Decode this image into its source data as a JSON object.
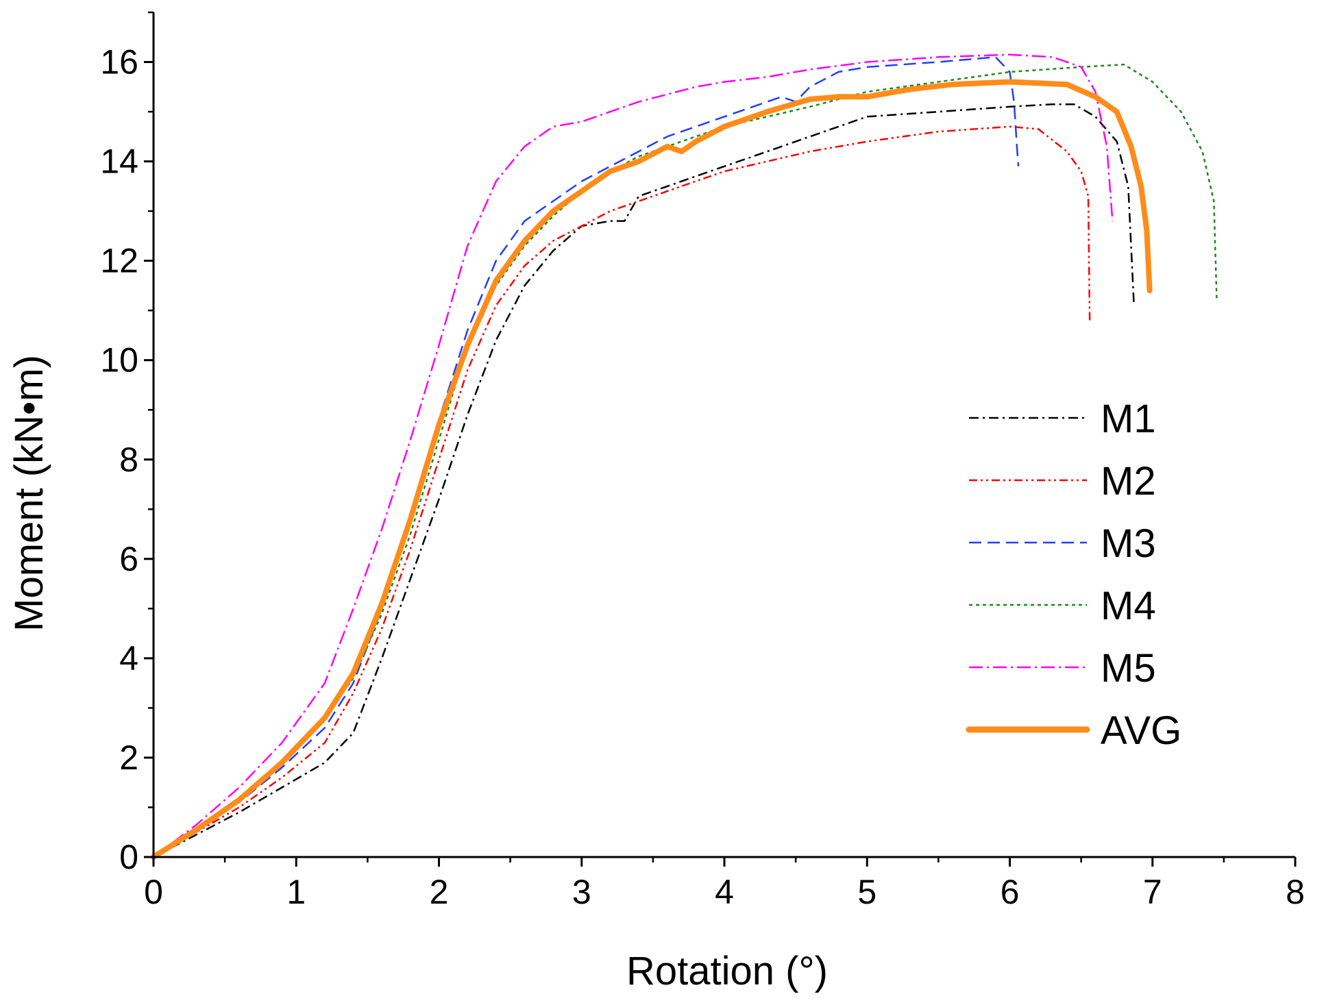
{
  "chart_data": {
    "type": "line",
    "title": "",
    "xlabel": "Rotation (°)",
    "ylabel": "Moment (kN•m)",
    "xlim": [
      0,
      8
    ],
    "ylim": [
      0,
      17
    ],
    "xticks": [
      0,
      1,
      2,
      3,
      4,
      5,
      6,
      7,
      8
    ],
    "yticks": [
      0,
      2,
      4,
      6,
      8,
      10,
      12,
      14,
      16
    ],
    "xtick_labels": [
      "0",
      "1",
      "2",
      "3",
      "4",
      "5",
      "6",
      "7",
      "8"
    ],
    "ytick_labels": [
      "0",
      "2",
      "4",
      "6",
      "8",
      "10",
      "12",
      "14",
      "16"
    ],
    "grid": false,
    "legend_position": "right",
    "series": [
      {
        "name": "M1",
        "color": "#000000",
        "dash": "dash-dot",
        "x": [
          0,
          0.3,
          0.6,
          0.9,
          1.2,
          1.4,
          1.6,
          1.8,
          2.0,
          2.2,
          2.4,
          2.6,
          2.8,
          3.0,
          3.2,
          3.3,
          3.4,
          3.6,
          3.8,
          4.0,
          4.3,
          4.6,
          5.0,
          5.5,
          6.0,
          6.3,
          6.45,
          6.6,
          6.75,
          6.83,
          6.87
        ],
        "y": [
          0,
          0.45,
          0.9,
          1.4,
          1.9,
          2.5,
          4.0,
          5.6,
          7.2,
          8.9,
          10.4,
          11.5,
          12.2,
          12.7,
          12.8,
          12.8,
          13.3,
          13.5,
          13.7,
          13.9,
          14.2,
          14.5,
          14.9,
          15.0,
          15.1,
          15.15,
          15.15,
          14.9,
          14.4,
          13.5,
          11.1
        ]
      },
      {
        "name": "M2",
        "color": "#ff0000",
        "dash": "dash-dot-dot",
        "x": [
          0,
          0.3,
          0.6,
          0.9,
          1.2,
          1.4,
          1.6,
          1.8,
          2.0,
          2.2,
          2.4,
          2.6,
          2.8,
          3.0,
          3.2,
          3.4,
          3.6,
          3.8,
          4.0,
          4.3,
          4.6,
          5.0,
          5.5,
          6.0,
          6.2,
          6.4,
          6.5,
          6.55,
          6.56
        ],
        "y": [
          0,
          0.5,
          1.0,
          1.6,
          2.3,
          3.3,
          4.6,
          6.2,
          8.0,
          9.8,
          11.1,
          11.9,
          12.4,
          12.7,
          13.0,
          13.2,
          13.4,
          13.6,
          13.8,
          14.0,
          14.2,
          14.4,
          14.6,
          14.7,
          14.65,
          14.2,
          13.8,
          13.3,
          10.8
        ]
      },
      {
        "name": "M3",
        "color": "#1f3fff",
        "dash": "dash",
        "x": [
          0,
          0.3,
          0.6,
          0.9,
          1.2,
          1.4,
          1.6,
          1.8,
          2.0,
          2.2,
          2.4,
          2.6,
          2.8,
          3.0,
          3.2,
          3.4,
          3.6,
          3.8,
          4.0,
          4.2,
          4.4,
          4.5,
          4.6,
          4.8,
          5.0,
          5.5,
          5.9,
          6.0,
          6.03,
          6.05,
          6.06
        ],
        "y": [
          0,
          0.55,
          1.1,
          1.8,
          2.6,
          3.5,
          5.0,
          6.8,
          8.8,
          10.6,
          12.0,
          12.8,
          13.2,
          13.6,
          13.9,
          14.2,
          14.5,
          14.7,
          14.9,
          15.1,
          15.3,
          15.2,
          15.5,
          15.8,
          15.9,
          16.0,
          16.1,
          15.8,
          15.2,
          14.3,
          13.9
        ]
      },
      {
        "name": "M4",
        "color": "#1a8a1a",
        "dash": "dot",
        "x": [
          0,
          0.3,
          0.6,
          0.9,
          1.2,
          1.4,
          1.6,
          1.8,
          2.0,
          2.2,
          2.4,
          2.6,
          2.8,
          3.0,
          3.2,
          3.4,
          3.6,
          3.8,
          4.0,
          4.3,
          4.6,
          5.0,
          5.5,
          6.0,
          6.5,
          6.8,
          7.0,
          7.2,
          7.35,
          7.43,
          7.45
        ],
        "y": [
          0,
          0.55,
          1.2,
          1.9,
          2.8,
          3.6,
          4.9,
          6.5,
          8.4,
          10.3,
          11.5,
          12.3,
          12.9,
          13.4,
          13.8,
          14.1,
          14.3,
          14.5,
          14.7,
          14.9,
          15.1,
          15.4,
          15.6,
          15.8,
          15.9,
          15.95,
          15.6,
          15.0,
          14.2,
          13.2,
          11.2
        ]
      },
      {
        "name": "M5",
        "color": "#ff00ff",
        "dash": "dash-dot-long",
        "x": [
          0,
          0.3,
          0.6,
          0.9,
          1.2,
          1.4,
          1.6,
          1.8,
          2.0,
          2.2,
          2.4,
          2.6,
          2.8,
          3.0,
          3.2,
          3.4,
          3.6,
          3.8,
          4.0,
          4.3,
          4.6,
          5.0,
          5.5,
          6.0,
          6.3,
          6.5,
          6.6,
          6.68,
          6.72
        ],
        "y": [
          0,
          0.65,
          1.4,
          2.3,
          3.5,
          5.0,
          6.6,
          8.4,
          10.3,
          12.3,
          13.6,
          14.3,
          14.7,
          14.8,
          15.0,
          15.2,
          15.35,
          15.5,
          15.6,
          15.7,
          15.85,
          16.0,
          16.1,
          16.15,
          16.1,
          15.9,
          15.4,
          14.3,
          12.8
        ]
      },
      {
        "name": "AVG",
        "color": "#ff8c1a",
        "dash": "solid",
        "x": [
          0,
          0.3,
          0.6,
          0.9,
          1.2,
          1.4,
          1.6,
          1.8,
          2.0,
          2.2,
          2.4,
          2.6,
          2.8,
          3.0,
          3.2,
          3.4,
          3.6,
          3.7,
          3.8,
          4.0,
          4.3,
          4.6,
          4.8,
          5.0,
          5.3,
          5.6,
          6.0,
          6.4,
          6.6,
          6.75,
          6.85,
          6.92,
          6.96,
          6.98
        ],
        "y": [
          0,
          0.55,
          1.15,
          1.9,
          2.8,
          3.7,
          5.1,
          6.8,
          8.7,
          10.3,
          11.6,
          12.4,
          13.0,
          13.4,
          13.8,
          14.0,
          14.3,
          14.2,
          14.4,
          14.7,
          15.0,
          15.25,
          15.3,
          15.3,
          15.45,
          15.55,
          15.6,
          15.55,
          15.3,
          15.0,
          14.3,
          13.5,
          12.6,
          11.4
        ]
      }
    ]
  }
}
